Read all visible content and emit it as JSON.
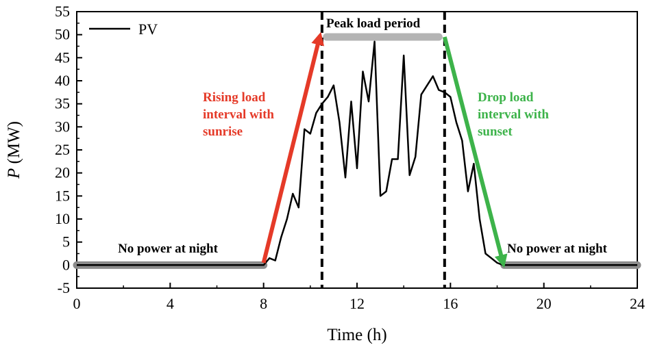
{
  "chart_data": {
    "type": "line",
    "xlabel": "Time (h)",
    "ylabel_italic": "P",
    "ylabel_unit": " (MW)",
    "xlim": [
      0,
      24
    ],
    "ylim": [
      -5,
      55
    ],
    "xticks": [
      0,
      4,
      8,
      12,
      16,
      20,
      24
    ],
    "yticks": [
      -5,
      0,
      5,
      10,
      15,
      20,
      25,
      30,
      35,
      40,
      45,
      50,
      55
    ],
    "grid": false,
    "legend": {
      "position": "top-left",
      "entries": [
        "PV"
      ]
    },
    "series": [
      {
        "name": "PV",
        "color": "#000000",
        "x": [
          0,
          8.0,
          8.25,
          8.5,
          8.75,
          9.0,
          9.25,
          9.5,
          9.75,
          10.0,
          10.25,
          10.5,
          10.75,
          11.0,
          11.25,
          11.5,
          11.75,
          12.0,
          12.25,
          12.5,
          12.75,
          13.0,
          13.25,
          13.5,
          13.75,
          14.0,
          14.25,
          14.5,
          14.75,
          15.0,
          15.25,
          15.5,
          15.75,
          16.0,
          16.25,
          16.5,
          16.75,
          17.0,
          17.25,
          17.5,
          17.75,
          18.0,
          18.25,
          24
        ],
        "y": [
          0,
          0,
          1.5,
          1.0,
          6.0,
          10.0,
          15.5,
          12.5,
          29.5,
          28.5,
          33.0,
          35.0,
          36.5,
          39.0,
          31.0,
          19.0,
          35.5,
          21.0,
          42.0,
          35.5,
          48.5,
          15.0,
          16.0,
          23.0,
          23.0,
          45.5,
          19.5,
          23.5,
          37.0,
          39.0,
          41.0,
          38.0,
          37.5,
          36.5,
          31.0,
          27.0,
          16.0,
          22.0,
          10.0,
          2.5,
          1.5,
          0.5,
          0,
          0
        ]
      }
    ],
    "vlines": [
      10.5,
      15.75
    ],
    "bands": [
      {
        "label": "No power at night",
        "x": [
          0,
          8
        ],
        "y": 0,
        "color": "#8c8c8c"
      },
      {
        "label": "Peak load period",
        "x": [
          10.7,
          15.5
        ],
        "y": 49.5,
        "color": "#b4b4b4"
      },
      {
        "label": "No power at night",
        "x": [
          18.3,
          24
        ],
        "y": 0,
        "color": "#8c8c8c"
      }
    ],
    "arrows": [
      {
        "from": [
          8.0,
          0.5
        ],
        "to": [
          10.4,
          49.5
        ],
        "color": "#e53a28",
        "label": [
          "Rising load",
          "interval with",
          "sunrise"
        ]
      },
      {
        "from": [
          15.75,
          49.5
        ],
        "to": [
          18.25,
          0.5
        ],
        "color": "#3db34a",
        "label": [
          "Drop load",
          "interval with",
          "sunset"
        ]
      }
    ]
  }
}
